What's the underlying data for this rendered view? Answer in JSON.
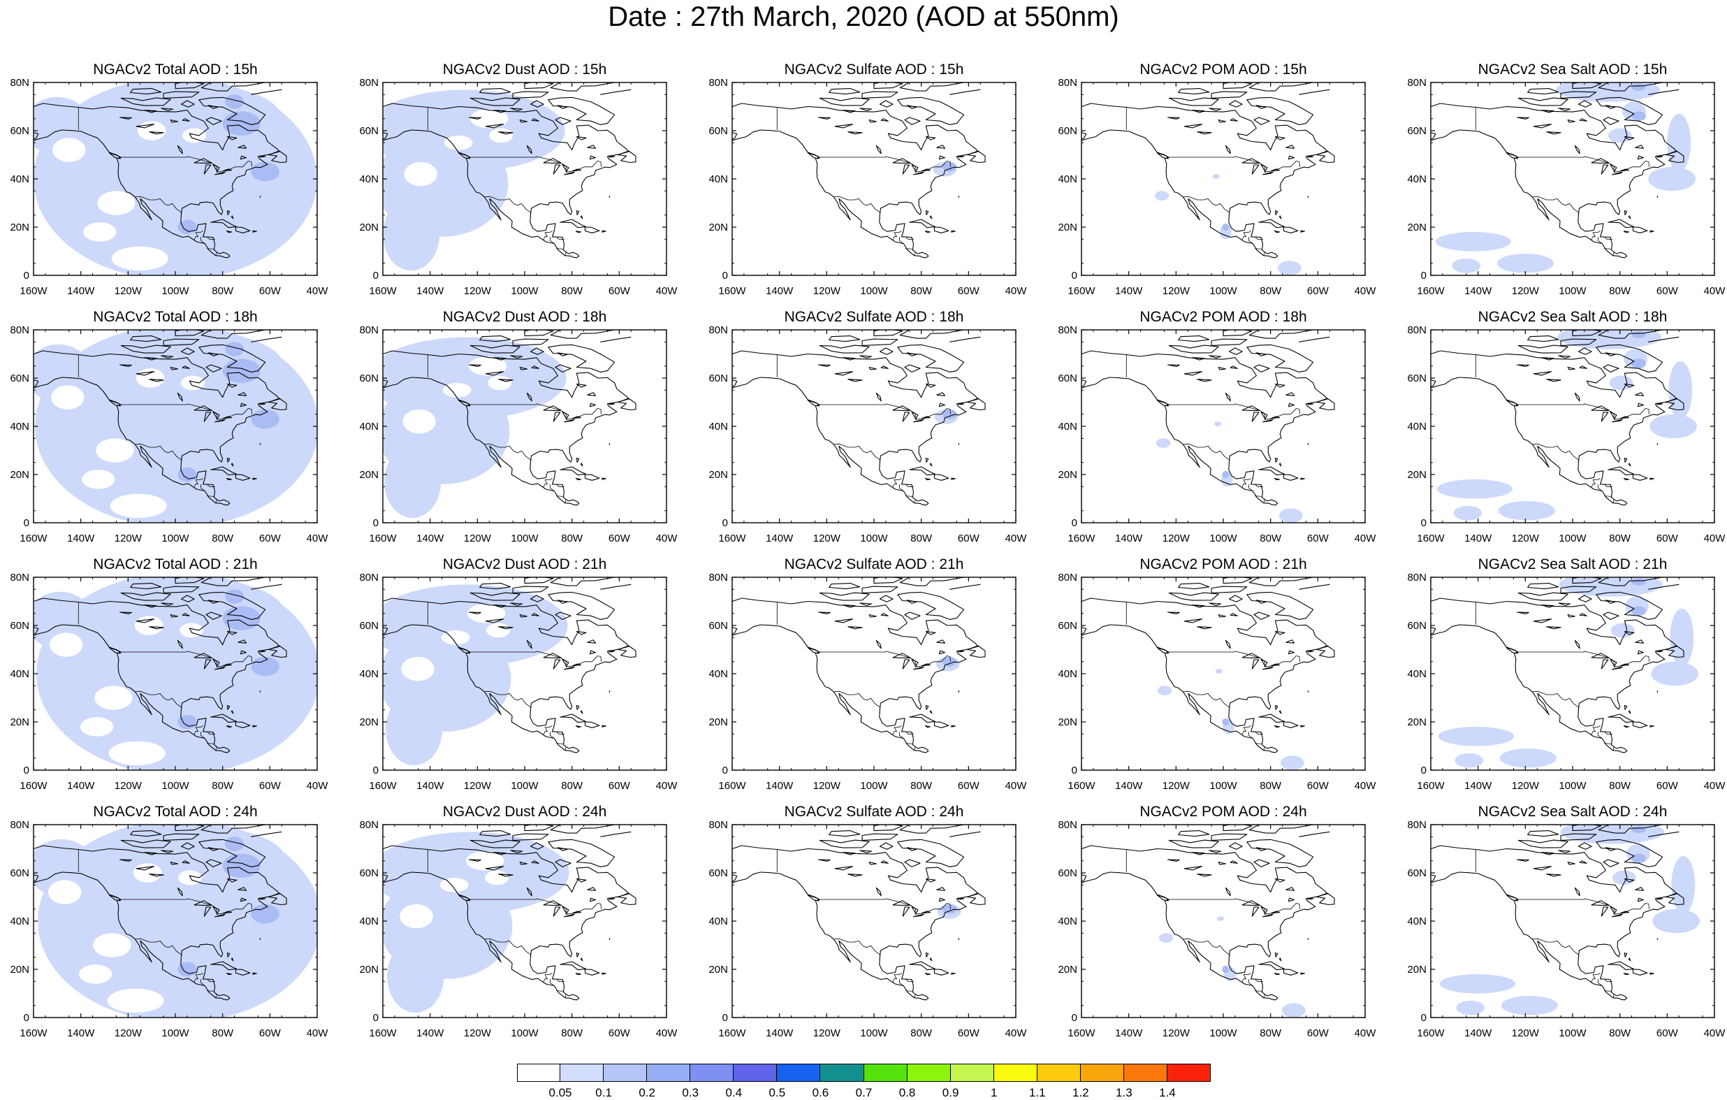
{
  "title": "Date : 27th March, 2020 (AOD at 550nm)",
  "map": {
    "lat_range": [
      0,
      80
    ],
    "lon_range": [
      -160,
      -40
    ],
    "yticks": [
      "0",
      "20N",
      "40N",
      "60N",
      "80N"
    ],
    "xticks": [
      "160W",
      "140W",
      "120W",
      "100W",
      "80W",
      "60W",
      "40W"
    ],
    "fill_color": "#cdd9fb",
    "fill_color_strong": "#a9bcf3",
    "coast_color": "#000000"
  },
  "panels": [
    {
      "title": "NGACv2 Total AOD : 15h",
      "species": "total"
    },
    {
      "title": "NGACv2 Dust AOD : 15h",
      "species": "dust"
    },
    {
      "title": "NGACv2 Sulfate AOD : 15h",
      "species": "sulfate"
    },
    {
      "title": "NGACv2 POM AOD : 15h",
      "species": "pom"
    },
    {
      "title": "NGACv2 Sea Salt AOD : 15h",
      "species": "seasalt"
    },
    {
      "title": "NGACv2 Total AOD : 18h",
      "species": "total"
    },
    {
      "title": "NGACv2 Dust AOD : 18h",
      "species": "dust"
    },
    {
      "title": "NGACv2 Sulfate AOD : 18h",
      "species": "sulfate"
    },
    {
      "title": "NGACv2 POM AOD : 18h",
      "species": "pom"
    },
    {
      "title": "NGACv2 Sea Salt AOD : 18h",
      "species": "seasalt"
    },
    {
      "title": "NGACv2 Total AOD : 21h",
      "species": "total"
    },
    {
      "title": "NGACv2 Dust AOD : 21h",
      "species": "dust"
    },
    {
      "title": "NGACv2 Sulfate AOD : 21h",
      "species": "sulfate"
    },
    {
      "title": "NGACv2 POM AOD : 21h",
      "species": "pom"
    },
    {
      "title": "NGACv2 Sea Salt AOD : 21h",
      "species": "seasalt"
    },
    {
      "title": "NGACv2 Total AOD : 24h",
      "species": "total"
    },
    {
      "title": "NGACv2 Dust AOD : 24h",
      "species": "dust"
    },
    {
      "title": "NGACv2 Sulfate AOD : 24h",
      "species": "sulfate"
    },
    {
      "title": "NGACv2 POM AOD : 24h",
      "species": "pom"
    },
    {
      "title": "NGACv2 Sea Salt  AOD : 24h",
      "species": "seasalt"
    }
  ],
  "colorbar": {
    "colors": [
      "#ffffff",
      "#d2dcfb",
      "#b4c6f6",
      "#96aef5",
      "#7e91f3",
      "#5f64ea",
      "#1563f0",
      "#12908f",
      "#55e30e",
      "#8df50c",
      "#c4f64f",
      "#fbfb0d",
      "#fbcb0c",
      "#fba50c",
      "#fb780c",
      "#f9230c"
    ],
    "labels": [
      "0.05",
      "0.1",
      "0.2",
      "0.3",
      "0.4",
      "0.5",
      "0.6",
      "0.7",
      "0.8",
      "0.9",
      "1",
      "1.1",
      "1.2",
      "1.3",
      "1.4"
    ]
  }
}
